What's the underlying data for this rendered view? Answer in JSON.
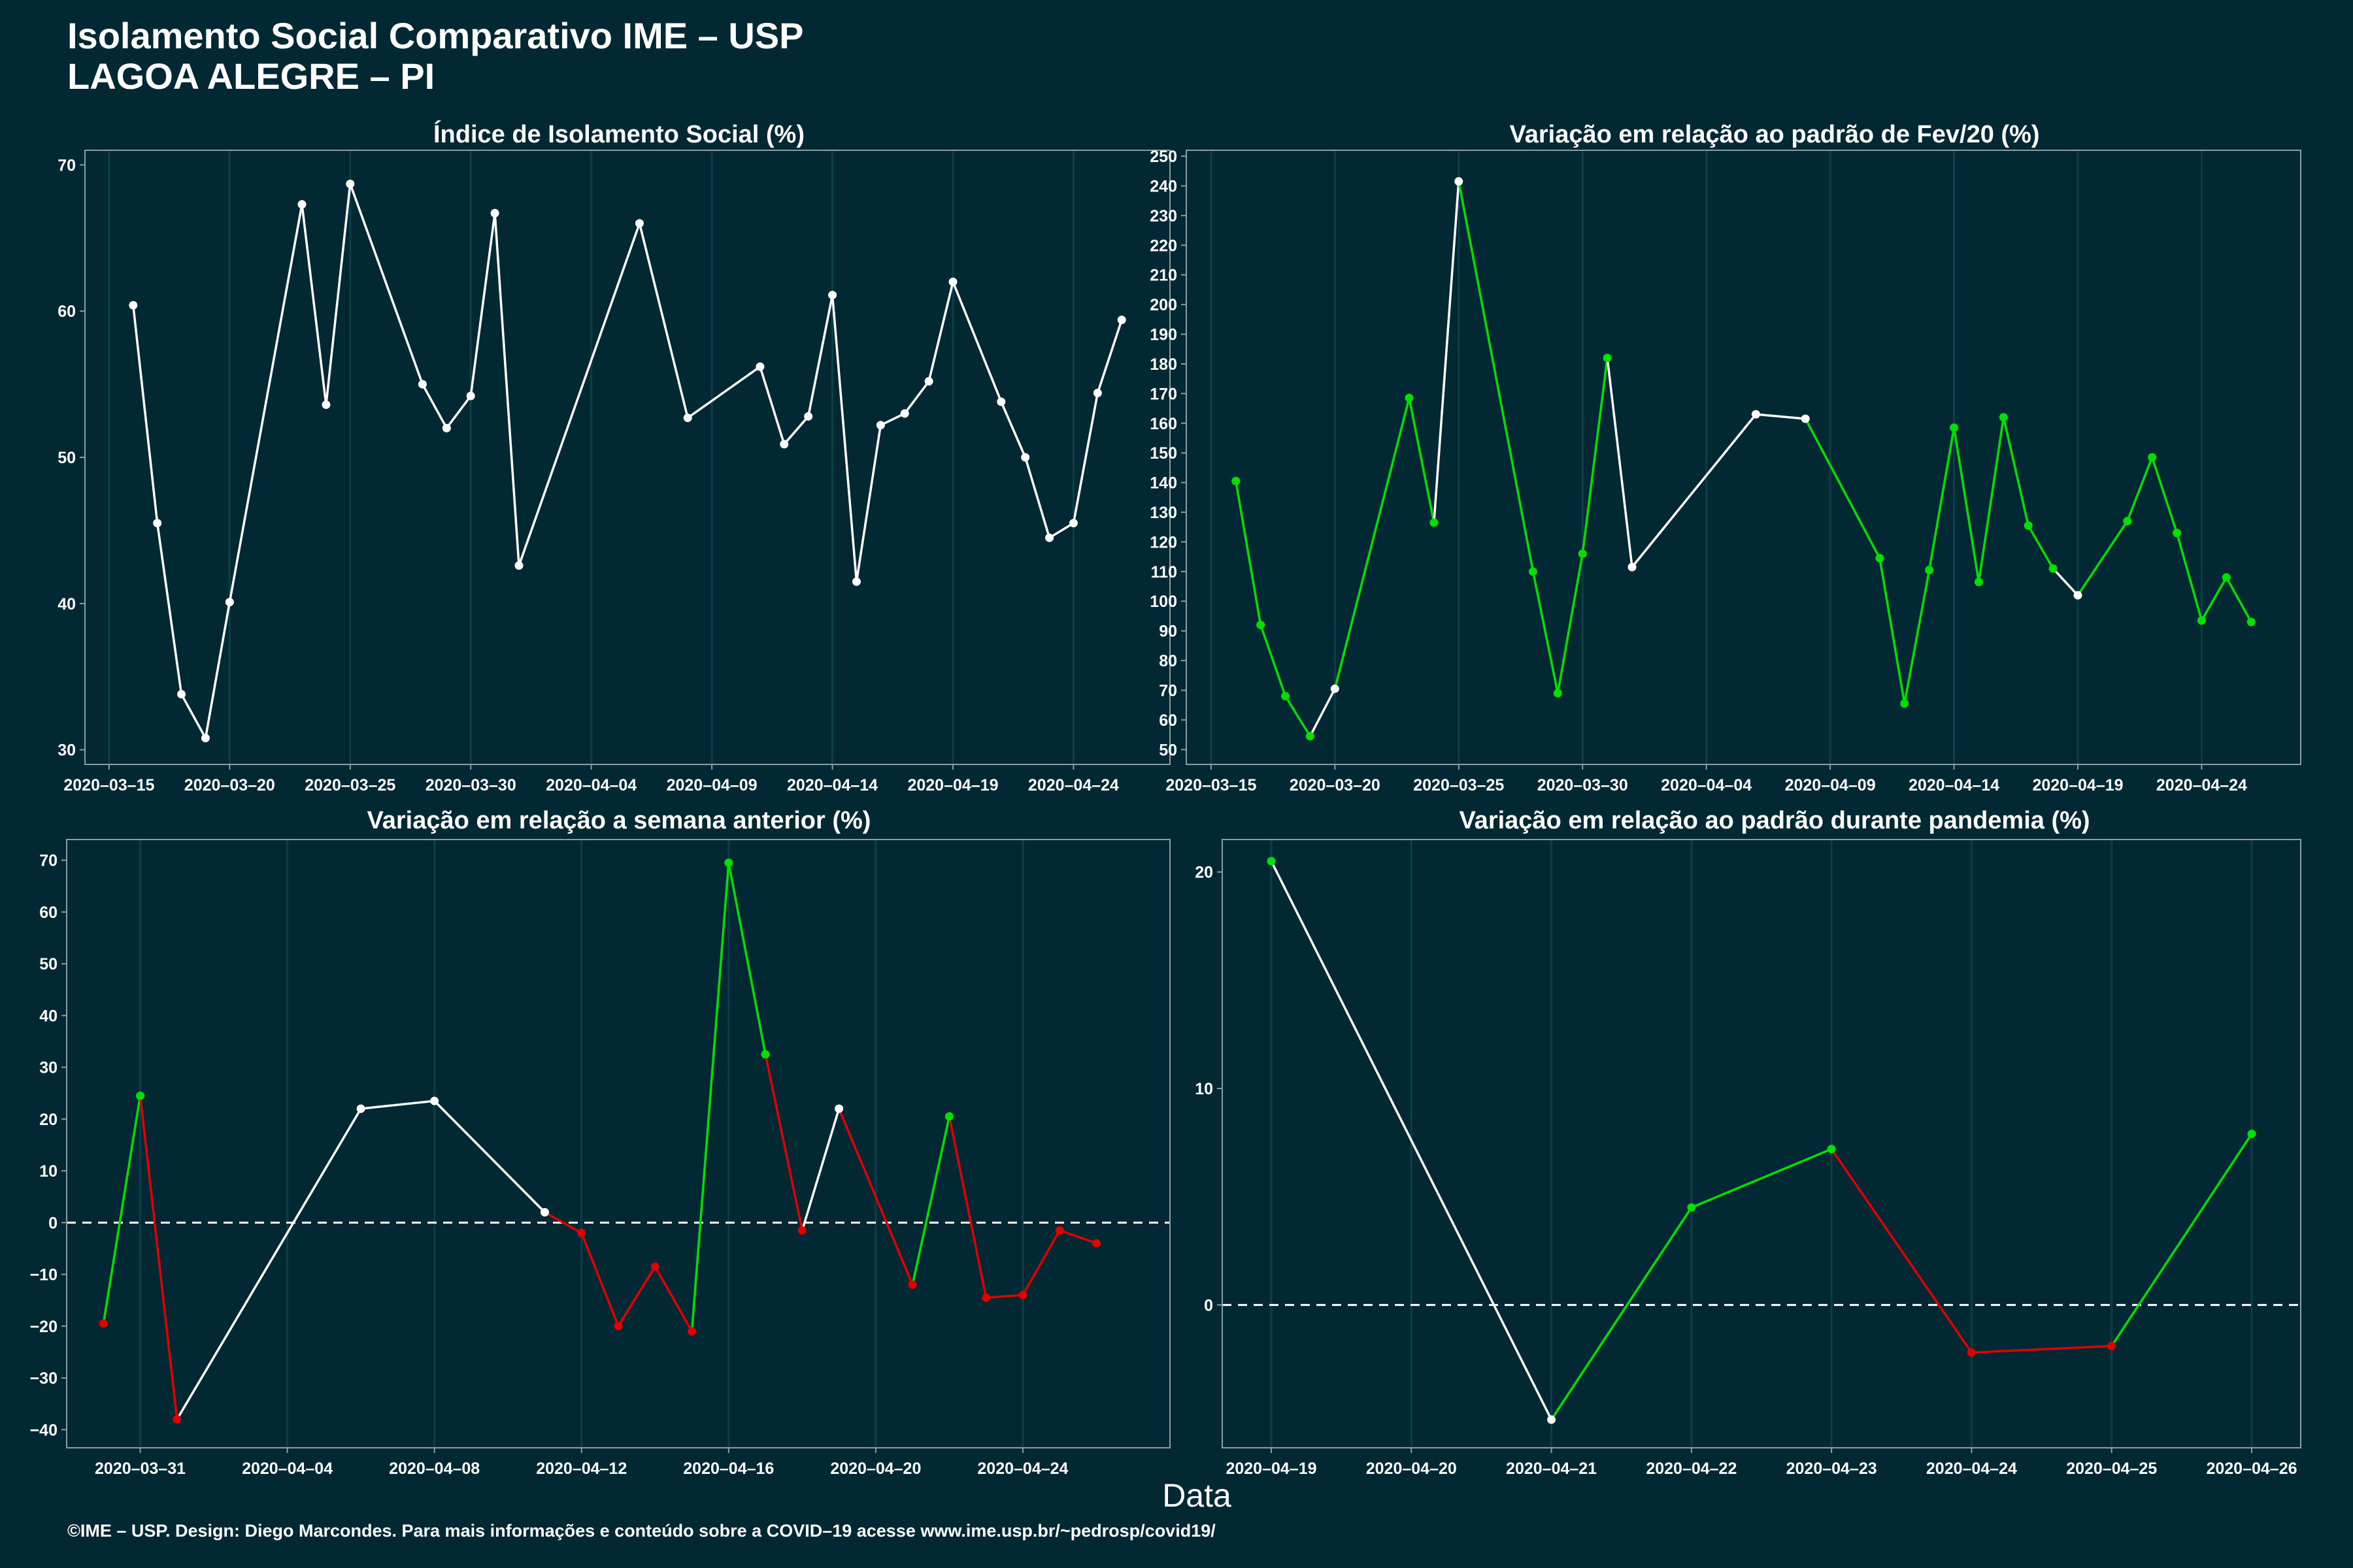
{
  "header": {
    "title": "Isolamento Social Comparativo IME – USP",
    "subtitle": "LAGOA ALEGRE – PI"
  },
  "footer": {
    "text": "©IME – USP. Design: Diego Marcondes. Para mais informações e conteúdo sobre a COVID–19 acesse www.ime.usp.br/~pedrosp/covid19/"
  },
  "x_axis_label": "Data",
  "colors": {
    "background": "#022833",
    "line_neutral": "#ffffff",
    "increase": "#00e000",
    "decrease": "#e00000",
    "grid": "#0d3d48",
    "axis": "#8a9ea4"
  },
  "chart_data": [
    {
      "type": "line",
      "title": "Índice de Isolamento Social (%)",
      "xlabel": "",
      "ylabel": "",
      "ylim": [
        29,
        71
      ],
      "yticks": [
        30,
        40,
        50,
        60,
        70
      ],
      "xlim": [
        "2020-03-14",
        "2020-04-28"
      ],
      "xticks": [
        "2020-03-15",
        "2020-03-20",
        "2020-03-25",
        "2020-03-30",
        "2020-04-04",
        "2020-04-09",
        "2020-04-14",
        "2020-04-19",
        "2020-04-24"
      ],
      "color_mode": "neutral",
      "points": [
        {
          "x": "2020-03-16",
          "y": 60.4
        },
        {
          "x": "2020-03-17",
          "y": 45.5
        },
        {
          "x": "2020-03-18",
          "y": 33.8
        },
        {
          "x": "2020-03-19",
          "y": 30.8
        },
        {
          "x": "2020-03-20",
          "y": 40.1
        },
        {
          "x": "2020-03-23",
          "y": 67.3
        },
        {
          "x": "2020-03-24",
          "y": 53.6
        },
        {
          "x": "2020-03-25",
          "y": 68.7
        },
        {
          "x": "2020-03-28",
          "y": 55.0
        },
        {
          "x": "2020-03-29",
          "y": 52.0
        },
        {
          "x": "2020-03-30",
          "y": 54.2
        },
        {
          "x": "2020-03-31",
          "y": 66.7
        },
        {
          "x": "2020-04-01",
          "y": 42.6
        },
        {
          "x": "2020-04-06",
          "y": 66.0
        },
        {
          "x": "2020-04-08",
          "y": 52.7
        },
        {
          "x": "2020-04-11",
          "y": 56.2
        },
        {
          "x": "2020-04-12",
          "y": 50.9
        },
        {
          "x": "2020-04-13",
          "y": 52.8
        },
        {
          "x": "2020-04-14",
          "y": 61.1
        },
        {
          "x": "2020-04-15",
          "y": 41.5
        },
        {
          "x": "2020-04-16",
          "y": 52.2
        },
        {
          "x": "2020-04-17",
          "y": 53.0
        },
        {
          "x": "2020-04-18",
          "y": 55.2
        },
        {
          "x": "2020-04-19",
          "y": 62.0
        },
        {
          "x": "2020-04-21",
          "y": 53.8
        },
        {
          "x": "2020-04-22",
          "y": 50.0
        },
        {
          "x": "2020-04-23",
          "y": 44.5
        },
        {
          "x": "2020-04-24",
          "y": 45.5
        },
        {
          "x": "2020-04-25",
          "y": 54.4
        },
        {
          "x": "2020-04-26",
          "y": 59.4
        }
      ]
    },
    {
      "type": "line",
      "title": "Variação em relação ao padrão de Fev/20 (%)",
      "xlabel": "",
      "ylabel": "",
      "ylim": [
        45,
        252
      ],
      "yticks": [
        50,
        60,
        70,
        80,
        90,
        100,
        110,
        120,
        130,
        140,
        150,
        160,
        170,
        180,
        190,
        200,
        210,
        220,
        230,
        240,
        250
      ],
      "xlim": [
        "2020-03-14",
        "2020-04-28"
      ],
      "xticks": [
        "2020-03-15",
        "2020-03-20",
        "2020-03-25",
        "2020-03-30",
        "2020-04-04",
        "2020-04-09",
        "2020-04-14",
        "2020-04-19",
        "2020-04-24"
      ],
      "color_mode": "green_default",
      "points": [
        {
          "x": "2020-03-16",
          "y": 140.5,
          "c": "g"
        },
        {
          "x": "2020-03-17",
          "y": 92.0,
          "c": "g"
        },
        {
          "x": "2020-03-18",
          "y": 68.0,
          "c": "g"
        },
        {
          "x": "2020-03-19",
          "y": 54.5,
          "c": "g"
        },
        {
          "x": "2020-03-20",
          "y": 70.5,
          "c": "w"
        },
        {
          "x": "2020-03-23",
          "y": 168.5,
          "c": "g"
        },
        {
          "x": "2020-03-24",
          "y": 126.5,
          "c": "g"
        },
        {
          "x": "2020-03-25",
          "y": 241.5,
          "c": "w"
        },
        {
          "x": "2020-03-28",
          "y": 110.0,
          "c": "g"
        },
        {
          "x": "2020-03-29",
          "y": 69.0,
          "c": "g"
        },
        {
          "x": "2020-03-30",
          "y": 116.0,
          "c": "g"
        },
        {
          "x": "2020-03-31",
          "y": 182.0,
          "c": "g"
        },
        {
          "x": "2020-04-01",
          "y": 111.5,
          "c": "w"
        },
        {
          "x": "2020-04-06",
          "y": 163.0,
          "c": "w"
        },
        {
          "x": "2020-04-08",
          "y": 161.5,
          "c": "w"
        },
        {
          "x": "2020-04-11",
          "y": 114.5,
          "c": "g"
        },
        {
          "x": "2020-04-12",
          "y": 65.5,
          "c": "g"
        },
        {
          "x": "2020-04-13",
          "y": 110.5,
          "c": "g"
        },
        {
          "x": "2020-04-14",
          "y": 158.5,
          "c": "g"
        },
        {
          "x": "2020-04-15",
          "y": 106.5,
          "c": "g"
        },
        {
          "x": "2020-04-16",
          "y": 162.0,
          "c": "g"
        },
        {
          "x": "2020-04-17",
          "y": 125.5,
          "c": "g"
        },
        {
          "x": "2020-04-18",
          "y": 111.0,
          "c": "g"
        },
        {
          "x": "2020-04-19",
          "y": 102.0,
          "c": "w"
        },
        {
          "x": "2020-04-21",
          "y": 127.0,
          "c": "g"
        },
        {
          "x": "2020-04-22",
          "y": 148.5,
          "c": "g"
        },
        {
          "x": "2020-04-23",
          "y": 123.0,
          "c": "g"
        },
        {
          "x": "2020-04-24",
          "y": 93.5,
          "c": "g"
        },
        {
          "x": "2020-04-25",
          "y": 108.0,
          "c": "g"
        },
        {
          "x": "2020-04-26",
          "y": 93.0,
          "c": "g"
        }
      ]
    },
    {
      "type": "line",
      "title": "Variação em relação a semana anterior (%)",
      "xlabel": "",
      "ylabel": "",
      "ylim": [
        -43.5,
        74
      ],
      "yticks": [
        -40,
        -30,
        -20,
        -10,
        0,
        10,
        20,
        30,
        40,
        50,
        60,
        70
      ],
      "xlim": [
        "2020-03-29",
        "2020-04-28"
      ],
      "xticks": [
        "2020-03-31",
        "2020-04-04",
        "2020-04-08",
        "2020-04-12",
        "2020-04-16",
        "2020-04-20",
        "2020-04-24"
      ],
      "zero_line": true,
      "color_mode": "sign",
      "points": [
        {
          "x": "2020-03-30",
          "y": -19.5
        },
        {
          "x": "2020-03-31",
          "y": 24.5
        },
        {
          "x": "2020-04-01",
          "y": -38.0
        },
        {
          "x": "2020-04-06",
          "y": 22.0,
          "c": "w"
        },
        {
          "x": "2020-04-08",
          "y": 23.5,
          "c": "w"
        },
        {
          "x": "2020-04-11",
          "y": 2.0,
          "c": "w"
        },
        {
          "x": "2020-04-12",
          "y": -2.0
        },
        {
          "x": "2020-04-13",
          "y": -20.0
        },
        {
          "x": "2020-04-14",
          "y": -8.5
        },
        {
          "x": "2020-04-15",
          "y": -21.0
        },
        {
          "x": "2020-04-16",
          "y": 69.5
        },
        {
          "x": "2020-04-17",
          "y": 32.5
        },
        {
          "x": "2020-04-18",
          "y": -1.5
        },
        {
          "x": "2020-04-19",
          "y": 22.0,
          "c": "w"
        },
        {
          "x": "2020-04-21",
          "y": -12.0
        },
        {
          "x": "2020-04-22",
          "y": 20.5
        },
        {
          "x": "2020-04-23",
          "y": -14.5
        },
        {
          "x": "2020-04-24",
          "y": -14.0
        },
        {
          "x": "2020-04-25",
          "y": -1.5
        },
        {
          "x": "2020-04-26",
          "y": -4.0
        }
      ]
    },
    {
      "type": "line",
      "title": "Variação em relação ao padrão durante pandemia (%)",
      "xlabel": "",
      "ylabel": "",
      "ylim": [
        -6.6,
        21.5
      ],
      "yticks": [
        0,
        10,
        20
      ],
      "xlim": [
        "2020-04-18.65",
        "2020-04-26.35"
      ],
      "xticks": [
        "2020-04-19",
        "2020-04-20",
        "2020-04-21",
        "2020-04-22",
        "2020-04-23",
        "2020-04-24",
        "2020-04-25",
        "2020-04-26"
      ],
      "zero_line": true,
      "color_mode": "sign",
      "points": [
        {
          "x": "2020-04-19",
          "y": 20.5
        },
        {
          "x": "2020-04-21",
          "y": -5.3,
          "c": "w"
        },
        {
          "x": "2020-04-22",
          "y": 4.5
        },
        {
          "x": "2020-04-23",
          "y": 7.2
        },
        {
          "x": "2020-04-24",
          "y": -2.2
        },
        {
          "x": "2020-04-25",
          "y": -1.9
        },
        {
          "x": "2020-04-26",
          "y": 7.9
        }
      ]
    }
  ]
}
